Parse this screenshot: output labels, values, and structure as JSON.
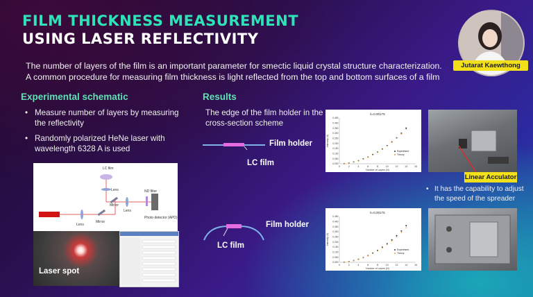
{
  "title": {
    "line1": "FILM THICKNESS MEASUREMENT",
    "line2": "USING LASER REFLECTIVITY"
  },
  "intro": "The number of layers of the film is an important parameter for smectic liquid crystal structure characterization. A common procedure for measuring film thickness is light reflected from the top and bottom surfaces of a film",
  "author": {
    "name": "Jutarat Kaewthong"
  },
  "schematic": {
    "heading": "Experimental schematic",
    "bullets": [
      "Measure number of layers by measuring the reflectivity",
      "Randomly polarized HeNe laser with wavelength 6328 A is used"
    ],
    "diagram_labels": {
      "lc_film": "LC film",
      "lens_top": "Lens",
      "nd_filter": "ND filter",
      "mirror_right": "Mirror",
      "lens_mid": "Lens",
      "lens_left": "Lens",
      "mirror_left": "Mirror",
      "detector": "Photo detector (APD)"
    },
    "laser_spot_label": "Laser spot"
  },
  "results": {
    "heading": "Results",
    "edge_text": "The edge of the film holder in the cross-section scheme",
    "film_holder_label": "Film holder",
    "lc_film_label": "LC film",
    "linear_actuator_label": "Linear Acculator",
    "actuator_note": "It has the capability to adjust the speed of the spreader"
  },
  "chart_data": [
    {
      "type": "scatter",
      "title": "k=0.00175",
      "xlabel": "Number of Layers (N)",
      "ylabel": "Intensity (V)",
      "xlim": [
        0,
        16
      ],
      "ylim": [
        0,
        0.45
      ],
      "xticks": [
        "0",
        "2",
        "4",
        "6",
        "8",
        "10",
        "12",
        "14",
        "16"
      ],
      "yticks": [
        "0.000",
        "0.050",
        "0.100",
        "0.150",
        "0.200",
        "0.250",
        "0.300",
        "0.350",
        "0.400",
        "0.450"
      ],
      "legend": [
        "Experiment",
        "Theory"
      ],
      "series": [
        {
          "name": "Experiment",
          "x": [
            1,
            2,
            3,
            4,
            5,
            6,
            7,
            8,
            9,
            10,
            11,
            12,
            13,
            14
          ],
          "y": [
            0.002,
            0.008,
            0.018,
            0.03,
            0.048,
            0.066,
            0.09,
            0.115,
            0.145,
            0.178,
            0.215,
            0.255,
            0.3,
            0.35
          ]
        },
        {
          "name": "Theory",
          "x": [
            1,
            2,
            3,
            4,
            5,
            6,
            7,
            8,
            9,
            10,
            11,
            12,
            13,
            14
          ],
          "y": [
            0.002,
            0.007,
            0.016,
            0.028,
            0.044,
            0.063,
            0.086,
            0.112,
            0.141,
            0.174,
            0.21,
            0.25,
            0.293,
            0.34
          ]
        }
      ]
    },
    {
      "type": "scatter",
      "title": "k=0.00175",
      "xlabel": "Number of Layers (N)",
      "ylabel": "Intensity (V)",
      "xlim": [
        0,
        16
      ],
      "ylim": [
        0,
        0.45
      ],
      "xticks": [
        "0",
        "2",
        "4",
        "6",
        "8",
        "10",
        "12",
        "14",
        "16"
      ],
      "yticks": [
        "0.000",
        "0.050",
        "0.100",
        "0.150",
        "0.200",
        "0.250",
        "0.300",
        "0.350",
        "0.400",
        "0.450"
      ],
      "legend": [
        "Experiment",
        "Theory"
      ],
      "series": [
        {
          "name": "Experiment",
          "x": [
            1,
            2,
            3,
            4,
            5,
            6,
            7,
            8,
            9,
            10,
            11,
            12,
            13,
            14
          ],
          "y": [
            0.002,
            0.008,
            0.017,
            0.03,
            0.046,
            0.066,
            0.09,
            0.117,
            0.148,
            0.182,
            0.22,
            0.262,
            0.308,
            0.36
          ]
        },
        {
          "name": "Theory",
          "x": [
            1,
            2,
            3,
            4,
            5,
            6,
            7,
            8,
            9,
            10,
            11,
            12,
            13,
            14
          ],
          "y": [
            0.002,
            0.007,
            0.016,
            0.028,
            0.044,
            0.063,
            0.086,
            0.112,
            0.141,
            0.174,
            0.21,
            0.25,
            0.293,
            0.34
          ]
        }
      ]
    }
  ]
}
